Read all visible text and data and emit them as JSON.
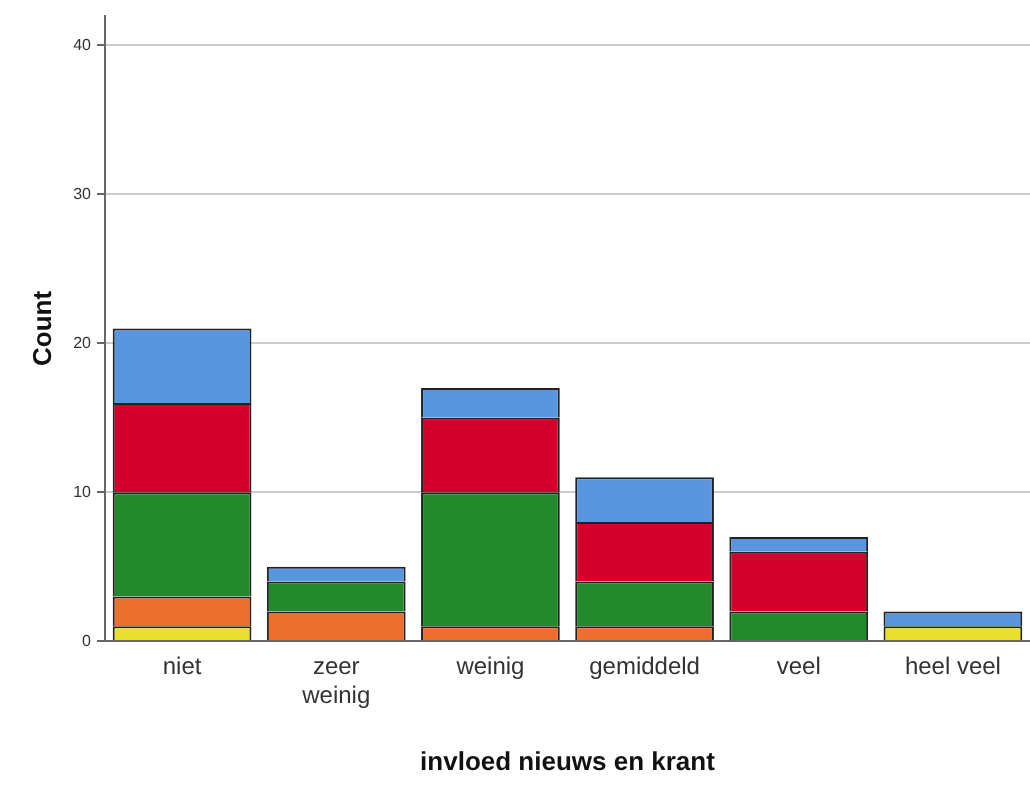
{
  "chart_data": {
    "type": "bar",
    "stacked": true,
    "xlabel": "invloed nieuws en krant",
    "ylabel": "Count",
    "categories": [
      "niet",
      "zeer weinig",
      "weinig",
      "gemiddeld",
      "veel",
      "heel veel"
    ],
    "series": [
      {
        "color": "#e8e02c",
        "values": [
          1,
          0,
          0,
          0,
          0,
          1
        ]
      },
      {
        "color": "#ee6e2e",
        "values": [
          2,
          2,
          1,
          1,
          0,
          0
        ]
      },
      {
        "color": "#24882c",
        "values": [
          7,
          2,
          9,
          3,
          2,
          0
        ]
      },
      {
        "color": "#d3002c",
        "values": [
          6,
          0,
          5,
          4,
          4,
          0
        ]
      },
      {
        "color": "#5a96e0",
        "values": [
          5,
          1,
          2,
          3,
          1,
          1
        ]
      }
    ],
    "ylim": [
      0,
      42
    ],
    "yticks": [
      0,
      10,
      20,
      30,
      40
    ],
    "grid": "y",
    "legend": false
  }
}
